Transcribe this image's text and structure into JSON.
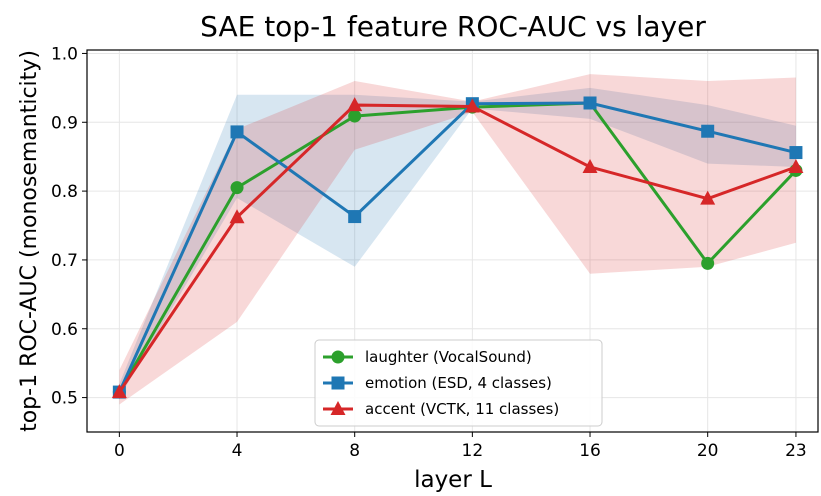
{
  "chart_data": {
    "type": "line",
    "title": "SAE top-1 feature ROC-AUC vs layer",
    "x_label": "layer L",
    "y_label": "top-1 ROC-AUC (monosemanticity)",
    "x": [
      0,
      4,
      8,
      12,
      16,
      20,
      23
    ],
    "xlim": [
      -1.1,
      23.75
    ],
    "xticks": [
      0,
      4,
      8,
      12,
      16,
      20,
      23
    ],
    "ylim": [
      0.45,
      1.005
    ],
    "yticks": [
      0.5,
      0.6,
      0.7,
      0.8,
      0.9,
      {
        "value": 1,
        "label": "1.0"
      }
    ],
    "grid": true,
    "legend": "lower center",
    "series": [
      {
        "name": "laughter (VocalSound)",
        "color": "#2ca02c",
        "marker": "circle",
        "values": [
          0.508,
          0.805,
          0.909,
          0.922,
          0.928,
          0.695,
          0.83
        ]
      },
      {
        "name": "emotion (ESD, 4 classes)",
        "color": "#1f77b4",
        "marker": "square",
        "values": [
          0.508,
          0.886,
          0.763,
          0.927,
          0.928,
          0.887,
          0.856
        ],
        "lower": [
          0.5,
          0.79,
          0.69,
          0.92,
          0.905,
          0.84,
          0.835
        ],
        "upper": [
          0.52,
          0.94,
          0.94,
          0.93,
          0.95,
          0.925,
          0.895
        ]
      },
      {
        "name": "accent (VCTK, 11 classes)",
        "color": "#d62728",
        "marker": "triangle",
        "values": [
          0.508,
          0.762,
          0.925,
          0.923,
          0.835,
          0.789,
          0.835
        ],
        "lower": [
          0.49,
          0.61,
          0.86,
          0.915,
          0.68,
          0.69,
          0.725
        ],
        "upper": [
          0.54,
          0.89,
          0.96,
          0.93,
          0.97,
          0.96,
          0.965
        ]
      }
    ]
  }
}
